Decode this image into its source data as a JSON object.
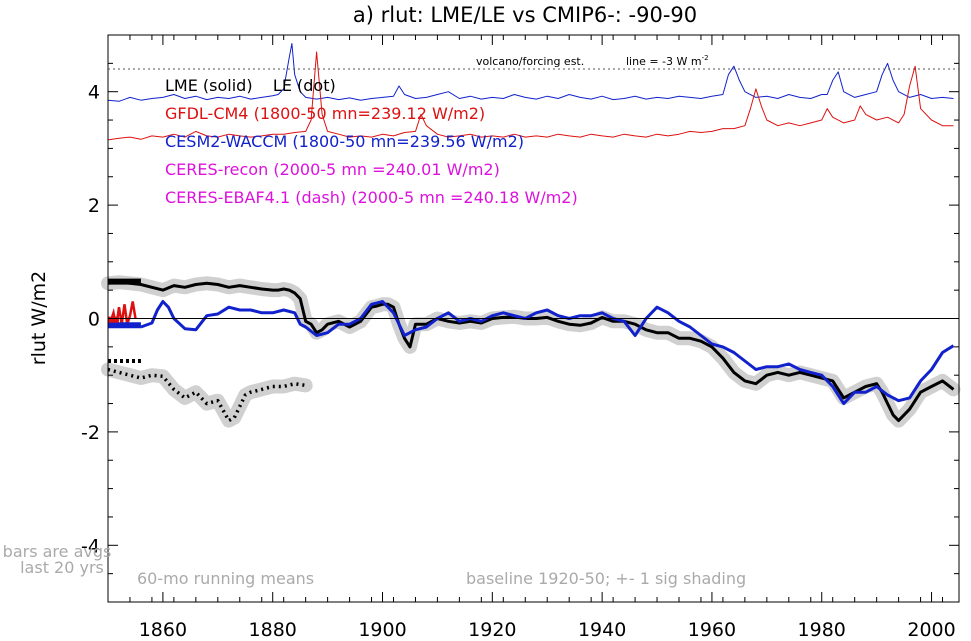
{
  "chart_data": {
    "type": "line",
    "title": "a) rlut: LME/LE vs CMIP6-: -90-90",
    "ylabel": "rlut W/m2",
    "xlabel": "",
    "xlim": [
      1850,
      2005
    ],
    "ylim": [
      -5,
      5
    ],
    "x_ticks": [
      1860,
      1880,
      1900,
      1920,
      1940,
      1960,
      1980,
      2000
    ],
    "y_ticks": [
      4,
      2,
      0,
      -2,
      -4
    ],
    "grid": false,
    "legend": {
      "header": "LME (solid)    LE (dot)",
      "entries": [
        {
          "text": "GFDL-CM4 (1800-50 mn=239.12 W/m2)",
          "color": "#dd1111"
        },
        {
          "text": "CESM2-WACCM (1800-50 mn=239.56 W/m2)",
          "color": "#1122cc"
        },
        {
          "text": "CERES-recon (2000-5 mn =240.01 W/m2)",
          "color": "#dd11dd"
        },
        {
          "text": "CERES-EBAF4.1 (dash) (2000-5 mn =240.18 W/m2)",
          "color": "#dd11dd"
        }
      ]
    },
    "annotations": {
      "volcano_label": "volcano/forcing est.",
      "line_label": "line = -3 W m",
      "line_label_sup": "-2",
      "bars_note_1": "bars are avgs",
      "bars_note_2": "last 20 yrs",
      "running_mean": "60-mo running means",
      "baseline": "baseline 1920-50; +- 1 sig shading"
    },
    "reference_line_y": 4.4,
    "series": [
      {
        "key": "forcing_blue",
        "color": "#1122cc",
        "x": [
          1850,
          1852,
          1854,
          1856,
          1858,
          1860,
          1862,
          1864,
          1866,
          1868,
          1870,
          1872,
          1874,
          1876,
          1878,
          1880,
          1881,
          1882,
          1883,
          1883.5,
          1884,
          1885,
          1886,
          1888,
          1890,
          1892,
          1894,
          1896,
          1898,
          1900,
          1902,
          1903,
          1904,
          1906,
          1908,
          1910,
          1912,
          1914,
          1916,
          1918,
          1920,
          1922,
          1924,
          1926,
          1928,
          1930,
          1932,
          1934,
          1936,
          1938,
          1940,
          1942,
          1944,
          1946,
          1948,
          1950,
          1952,
          1954,
          1956,
          1958,
          1960,
          1962,
          1963,
          1964,
          1965,
          1966,
          1968,
          1970,
          1972,
          1974,
          1976,
          1978,
          1980,
          1981,
          1982,
          1983,
          1984,
          1986,
          1988,
          1990,
          1991,
          1992,
          1993,
          1994,
          1996,
          1998,
          2000,
          2002,
          2004
        ],
        "y": [
          3.85,
          3.83,
          3.9,
          3.85,
          3.88,
          3.9,
          3.95,
          3.88,
          3.92,
          3.86,
          3.9,
          3.88,
          3.92,
          3.87,
          3.9,
          3.93,
          3.95,
          4.05,
          4.6,
          4.85,
          4.3,
          4.0,
          3.9,
          3.87,
          3.9,
          3.86,
          3.89,
          3.85,
          3.88,
          3.9,
          3.92,
          4.1,
          3.95,
          3.88,
          3.9,
          3.95,
          4.0,
          3.88,
          3.92,
          3.87,
          3.9,
          3.88,
          3.95,
          3.9,
          3.87,
          3.92,
          3.88,
          3.95,
          3.9,
          3.87,
          3.92,
          3.86,
          3.88,
          3.92,
          3.87,
          3.9,
          3.88,
          3.92,
          3.9,
          3.88,
          3.92,
          3.95,
          4.3,
          4.45,
          4.2,
          4.0,
          3.9,
          3.92,
          3.88,
          3.95,
          3.9,
          3.88,
          3.95,
          3.95,
          4.2,
          4.35,
          4.0,
          3.9,
          3.95,
          4.0,
          4.3,
          4.5,
          4.2,
          4.0,
          3.9,
          3.95,
          3.88,
          3.9,
          3.88
        ]
      },
      {
        "key": "forcing_red",
        "color": "#dd1111",
        "x": [
          1850,
          1852,
          1854,
          1856,
          1858,
          1860,
          1862,
          1864,
          1866,
          1868,
          1870,
          1872,
          1874,
          1876,
          1878,
          1880,
          1882,
          1884,
          1886,
          1887,
          1888,
          1889,
          1890,
          1892,
          1894,
          1896,
          1898,
          1900,
          1902,
          1904,
          1906,
          1907,
          1908,
          1910,
          1912,
          1914,
          1916,
          1918,
          1920,
          1922,
          1924,
          1926,
          1928,
          1930,
          1932,
          1934,
          1936,
          1938,
          1940,
          1942,
          1944,
          1946,
          1948,
          1950,
          1952,
          1954,
          1956,
          1958,
          1960,
          1962,
          1964,
          1966,
          1967,
          1968,
          1969,
          1970,
          1972,
          1974,
          1976,
          1978,
          1980,
          1981,
          1982,
          1984,
          1986,
          1987,
          1988,
          1990,
          1992,
          1994,
          1995,
          1996,
          1997,
          1998,
          2000,
          2002,
          2004
        ],
        "y": [
          3.15,
          3.18,
          3.2,
          3.16,
          3.22,
          3.2,
          3.25,
          3.2,
          3.3,
          3.22,
          3.2,
          3.25,
          3.22,
          3.2,
          3.22,
          3.25,
          3.25,
          3.28,
          3.3,
          3.5,
          4.7,
          3.6,
          3.3,
          3.25,
          3.2,
          3.22,
          3.2,
          3.25,
          3.22,
          3.28,
          3.3,
          3.6,
          3.4,
          3.25,
          3.2,
          3.22,
          3.25,
          3.2,
          3.22,
          3.2,
          3.25,
          3.2,
          3.22,
          3.2,
          3.25,
          3.22,
          3.2,
          3.25,
          3.22,
          3.2,
          3.25,
          3.22,
          3.2,
          3.25,
          3.22,
          3.25,
          3.3,
          3.28,
          3.3,
          3.35,
          3.35,
          3.4,
          3.7,
          4.05,
          3.75,
          3.5,
          3.4,
          3.45,
          3.4,
          3.45,
          3.5,
          3.7,
          3.55,
          3.45,
          3.5,
          3.75,
          3.6,
          3.5,
          3.55,
          3.45,
          3.6,
          4.1,
          4.45,
          3.7,
          3.5,
          3.4,
          3.4
        ]
      },
      {
        "key": "LME_black",
        "color": "#000000",
        "shade": true,
        "x": [
          1850,
          1852,
          1854,
          1856,
          1858,
          1860,
          1862,
          1864,
          1866,
          1868,
          1870,
          1872,
          1874,
          1876,
          1878,
          1880,
          1881,
          1882,
          1883,
          1884,
          1885,
          1886,
          1887,
          1888,
          1889,
          1890,
          1892,
          1894,
          1896,
          1898,
          1899,
          1900,
          1901,
          1902,
          1903,
          1904,
          1905,
          1906,
          1908,
          1910,
          1912,
          1914,
          1916,
          1918,
          1920,
          1922,
          1924,
          1926,
          1928,
          1930,
          1932,
          1934,
          1936,
          1938,
          1940,
          1942,
          1944,
          1946,
          1948,
          1950,
          1952,
          1954,
          1956,
          1958,
          1960,
          1962,
          1964,
          1966,
          1968,
          1970,
          1972,
          1974,
          1976,
          1978,
          1980,
          1982,
          1984,
          1986,
          1988,
          1990,
          1991,
          1992,
          1993,
          1994,
          1996,
          1998,
          2000,
          2002,
          2004
        ],
        "y": [
          0.62,
          0.64,
          0.62,
          0.6,
          0.55,
          0.5,
          0.58,
          0.55,
          0.6,
          0.62,
          0.6,
          0.55,
          0.58,
          0.55,
          0.52,
          0.5,
          0.5,
          0.52,
          0.5,
          0.45,
          0.35,
          -0.05,
          -0.1,
          -0.25,
          -0.2,
          -0.1,
          -0.05,
          -0.15,
          -0.05,
          0.2,
          0.22,
          0.25,
          0.25,
          0.2,
          -0.1,
          -0.35,
          -0.5,
          -0.1,
          -0.1,
          0.0,
          -0.05,
          -0.08,
          -0.05,
          -0.08,
          0.0,
          0.02,
          0.03,
          0.0,
          0.0,
          0.02,
          -0.05,
          -0.1,
          -0.12,
          -0.08,
          0.02,
          -0.05,
          -0.05,
          -0.1,
          -0.2,
          -0.25,
          -0.25,
          -0.35,
          -0.35,
          -0.4,
          -0.5,
          -0.7,
          -0.95,
          -1.1,
          -1.15,
          -1.0,
          -0.95,
          -1.0,
          -0.95,
          -1.0,
          -1.05,
          -1.1,
          -1.4,
          -1.3,
          -1.2,
          -1.15,
          -1.3,
          -1.5,
          -1.7,
          -1.8,
          -1.6,
          -1.3,
          -1.2,
          -1.1,
          -1.25
        ]
      },
      {
        "key": "CESM2_blue",
        "color": "#1122cc",
        "x": [
          1856,
          1858,
          1859,
          1860,
          1861,
          1862,
          1864,
          1866,
          1868,
          1870,
          1872,
          1874,
          1876,
          1878,
          1880,
          1882,
          1884,
          1885,
          1886,
          1888,
          1890,
          1892,
          1894,
          1896,
          1898,
          1900,
          1902,
          1904,
          1906,
          1908,
          1910,
          1912,
          1914,
          1916,
          1918,
          1920,
          1922,
          1924,
          1926,
          1928,
          1930,
          1932,
          1934,
          1936,
          1938,
          1940,
          1942,
          1944,
          1946,
          1948,
          1950,
          1952,
          1954,
          1956,
          1958,
          1960,
          1962,
          1964,
          1966,
          1968,
          1970,
          1972,
          1974,
          1976,
          1978,
          1980,
          1982,
          1984,
          1986,
          1988,
          1990,
          1992,
          1994,
          1996,
          1998,
          2000,
          2002,
          2004
        ],
        "y": [
          -0.15,
          -0.08,
          0.15,
          0.3,
          0.2,
          0.0,
          -0.18,
          -0.2,
          0.05,
          0.08,
          0.2,
          0.15,
          0.15,
          0.1,
          0.1,
          0.15,
          0.1,
          -0.1,
          -0.15,
          -0.3,
          -0.25,
          -0.1,
          -0.1,
          0.0,
          0.25,
          0.3,
          0.1,
          -0.3,
          -0.2,
          -0.15,
          0.0,
          0.1,
          -0.05,
          0.0,
          -0.05,
          0.05,
          0.1,
          0.05,
          0.0,
          0.1,
          0.15,
          0.05,
          0.0,
          0.05,
          0.05,
          0.1,
          0.0,
          -0.05,
          -0.3,
          0.0,
          0.2,
          0.1,
          -0.05,
          -0.15,
          -0.3,
          -0.45,
          -0.5,
          -0.6,
          -0.75,
          -0.9,
          -0.85,
          -0.85,
          -0.8,
          -0.9,
          -0.95,
          -1.0,
          -1.2,
          -1.5,
          -1.3,
          -1.3,
          -1.2,
          -1.35,
          -1.45,
          -1.4,
          -1.1,
          -0.9,
          -0.6,
          -0.48
        ]
      },
      {
        "key": "LE_dotted",
        "color": "#000000",
        "dotted": true,
        "shade": true,
        "x": [
          1850,
          1852,
          1854,
          1856,
          1858,
          1860,
          1862,
          1864,
          1866,
          1868,
          1870,
          1872,
          1873,
          1874,
          1875,
          1876,
          1878,
          1880,
          1882,
          1884,
          1886
        ],
        "y": [
          -0.9,
          -0.95,
          -1.0,
          -1.05,
          -1.0,
          -1.02,
          -1.25,
          -1.4,
          -1.3,
          -1.5,
          -1.45,
          -1.8,
          -1.75,
          -1.55,
          -1.35,
          -1.3,
          -1.25,
          -1.2,
          -1.2,
          -1.15,
          -1.18
        ]
      }
    ],
    "bars": [
      {
        "key": "bar_black",
        "color": "#000000",
        "y": 0.65,
        "x0": 1850,
        "x1": 1856,
        "style": "solid"
      },
      {
        "key": "bar_blue",
        "color": "#1122cc",
        "y": -0.12,
        "x0": 1850,
        "x1": 1856,
        "style": "solid"
      },
      {
        "key": "bar_red",
        "color": "#dd1111",
        "y": -0.02,
        "x0": 1850,
        "x1": 1852,
        "style": "solid"
      },
      {
        "key": "bar_dotted",
        "color": "#000000",
        "y": -0.75,
        "x0": 1850,
        "x1": 1856,
        "style": "dotted"
      }
    ],
    "red_squiggle": {
      "color": "#dd1111",
      "x": [
        1850.5,
        1851,
        1851.5,
        1852,
        1852.5,
        1853,
        1853.5,
        1854,
        1854.5,
        1855
      ],
      "y": [
        -0.05,
        0.1,
        -0.15,
        0.2,
        -0.1,
        0.25,
        -0.1,
        0.05,
        0.3,
        0.0
      ]
    }
  }
}
